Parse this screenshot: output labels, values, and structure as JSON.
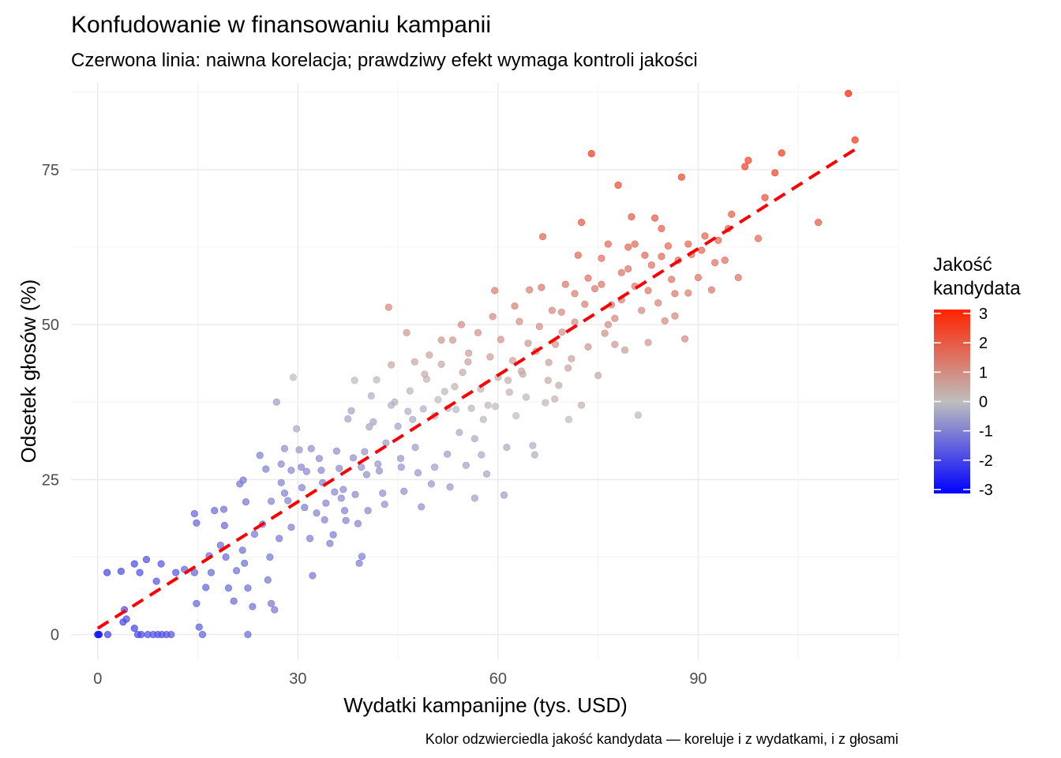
{
  "chart_data": {
    "type": "scatter",
    "title": "Konfudowanie w finansowaniu kampanii",
    "subtitle": "Czerwona linia: naiwna korelacja; prawdziwy efekt wymaga kontroli jakości",
    "xlabel": "Wydatki kampanijne (tys. USD)",
    "ylabel": "Odsetek głosów (%)",
    "caption": "Kolor odzwierciedla jakość kandydata — koreluje i z wydatkami, i z głosami",
    "xlim": [
      -4,
      120
    ],
    "ylim": [
      -4,
      89
    ],
    "x_ticks": [
      0,
      30,
      60,
      90
    ],
    "y_ticks": [
      0,
      25,
      50,
      75
    ],
    "grid": true,
    "legend": {
      "title": "Jakość\nkandydata",
      "position": "right",
      "range": [
        -3,
        3
      ],
      "ticks": [
        3,
        2,
        1,
        0,
        -1,
        -2,
        -3
      ],
      "colors": {
        "low": "#0000ff",
        "mid": "#bebebe",
        "high": "#ff2200"
      }
    },
    "trend_line": {
      "x": [
        0,
        114
      ],
      "y": [
        1,
        78.6
      ],
      "color": "#ff0000",
      "style": "dashed"
    },
    "points": [
      [
        0,
        0,
        -2.9
      ],
      [
        0.2,
        0,
        -2.8
      ],
      [
        1.5,
        0,
        -1.9
      ],
      [
        1.4,
        10,
        -1.9
      ],
      [
        3.5,
        10.2,
        -1.8
      ],
      [
        4,
        4,
        -1.8
      ],
      [
        3.8,
        2,
        -1.9
      ],
      [
        4.3,
        2.5,
        -1.8
      ],
      [
        5.5,
        1,
        -1.9
      ],
      [
        6,
        0,
        -1.8
      ],
      [
        6.5,
        0,
        -1.8
      ],
      [
        7.5,
        0,
        -1.7
      ],
      [
        8.3,
        0,
        -1.7
      ],
      [
        9,
        0,
        -1.7
      ],
      [
        9.6,
        0,
        -1.7
      ],
      [
        10.3,
        0,
        -1.7
      ],
      [
        11,
        0,
        -1.6
      ],
      [
        5.5,
        11.4,
        -1.8
      ],
      [
        6.3,
        10,
        -1.7
      ],
      [
        7.3,
        12.1,
        -1.7
      ],
      [
        8.8,
        8.6,
        -1.6
      ],
      [
        9.5,
        11.4,
        -1.6
      ],
      [
        11.7,
        10,
        -1.6
      ],
      [
        13,
        10.5,
        -1.4
      ],
      [
        14.5,
        19.5,
        -1.4
      ],
      [
        14.8,
        18,
        -1.4
      ],
      [
        14.5,
        10,
        -1.4
      ],
      [
        14.8,
        5,
        -1.4
      ],
      [
        15.2,
        1.2,
        -1.5
      ],
      [
        15.7,
        0,
        -1.4
      ],
      [
        16.2,
        7.6,
        -1.4
      ],
      [
        16.7,
        12.7,
        -1.3
      ],
      [
        17,
        10,
        -1.3
      ],
      [
        17.5,
        20,
        -1.3
      ],
      [
        18.4,
        14.4,
        -1.3
      ],
      [
        18.9,
        20.2,
        -1.2
      ],
      [
        19,
        17.6,
        -1.3
      ],
      [
        19.2,
        12.5,
        -1.3
      ],
      [
        19.6,
        7.5,
        -1.3
      ],
      [
        20.4,
        5.4,
        -1.3
      ],
      [
        20.8,
        10.3,
        -1.2
      ],
      [
        21.3,
        24.3,
        -1.1
      ],
      [
        21.7,
        13.6,
        -1.2
      ],
      [
        22,
        11.5,
        -1.2
      ],
      [
        22.5,
        0,
        -1.3
      ],
      [
        22.5,
        7.5,
        -1.2
      ],
      [
        23.2,
        4.5,
        -1.2
      ],
      [
        21.8,
        24.9,
        -1.1
      ],
      [
        22.2,
        21.4,
        -1.1
      ],
      [
        23.5,
        16.2,
        -1.1
      ],
      [
        24.3,
        28.9,
        -1
      ],
      [
        24.7,
        17.8,
        -1.1
      ],
      [
        25.2,
        26.7,
        -1
      ],
      [
        25.5,
        8.8,
        -1.1
      ],
      [
        25.8,
        12.5,
        -1.1
      ],
      [
        26,
        5,
        -1.1
      ],
      [
        26.5,
        4,
        -1.1
      ],
      [
        26.8,
        37.5,
        -0.5
      ],
      [
        27.2,
        15.5,
        -1.1
      ],
      [
        27.5,
        24.5,
        -0.9
      ],
      [
        28,
        22.8,
        -0.9
      ],
      [
        28.5,
        21.6,
        -0.9
      ],
      [
        29,
        17.3,
        -1
      ],
      [
        29.3,
        41.5,
        0
      ],
      [
        29.8,
        33.2,
        -0.3
      ],
      [
        30.2,
        29.8,
        -0.6
      ],
      [
        30.6,
        23.7,
        -0.9
      ],
      [
        31,
        20.5,
        -1
      ],
      [
        31.3,
        26.3,
        -0.8
      ],
      [
        31.8,
        15.5,
        -1
      ],
      [
        32.2,
        9.5,
        -1.1
      ],
      [
        32.8,
        19.6,
        -0.9
      ],
      [
        33.2,
        28.4,
        -0.8
      ],
      [
        33.7,
        24.5,
        -0.9
      ],
      [
        34.2,
        21.2,
        -0.9
      ],
      [
        34.8,
        14.7,
        -1
      ],
      [
        35.3,
        16.1,
        -1
      ],
      [
        35.8,
        29.6,
        -0.7
      ],
      [
        36.2,
        26.8,
        -0.8
      ],
      [
        36.8,
        23.4,
        -0.8
      ],
      [
        37.2,
        18.4,
        -0.9
      ],
      [
        37.5,
        34.8,
        -0.4
      ],
      [
        38,
        36.1,
        -0.4
      ],
      [
        38.3,
        28.5,
        -0.7
      ],
      [
        38.6,
        22.6,
        -0.8
      ],
      [
        39,
        17.9,
        -0.9
      ],
      [
        39.2,
        11.5,
        -1
      ],
      [
        39.6,
        12.6,
        -1
      ],
      [
        40,
        29.5,
        -0.6
      ],
      [
        40.3,
        25.8,
        -0.7
      ],
      [
        40.7,
        33.5,
        -0.4
      ],
      [
        41,
        38.5,
        -0.2
      ],
      [
        41.3,
        34.3,
        -0.4
      ],
      [
        41.8,
        41.1,
        0.1
      ],
      [
        42.2,
        26.4,
        -0.7
      ],
      [
        42.7,
        22.8,
        -0.7
      ],
      [
        43.2,
        30.9,
        -0.5
      ],
      [
        43.6,
        52.8,
        1
      ],
      [
        44,
        43.5,
        0.4
      ],
      [
        44.5,
        37.5,
        -0.2
      ],
      [
        45,
        33.6,
        -0.4
      ],
      [
        45.4,
        28.4,
        -0.6
      ],
      [
        45.9,
        23.1,
        -0.7
      ],
      [
        46.3,
        48.7,
        0.7
      ],
      [
        46.8,
        39.3,
        0.1
      ],
      [
        47.2,
        34.7,
        -0.3
      ],
      [
        47.6,
        30.2,
        -0.5
      ],
      [
        48,
        26.1,
        -0.6
      ],
      [
        48.5,
        20.6,
        -0.7
      ],
      [
        48.8,
        36.4,
        -0.2
      ],
      [
        49.3,
        41.2,
        0.2
      ],
      [
        49.7,
        45.1,
        0.5
      ],
      [
        50,
        24.3,
        -0.6
      ],
      [
        50.5,
        35.3,
        -0.2
      ],
      [
        51,
        37.9,
        0
      ],
      [
        51.5,
        43.6,
        0.4
      ],
      [
        52,
        39.2,
        0.1
      ],
      [
        52.4,
        29.1,
        -0.5
      ],
      [
        52.8,
        23.8,
        -0.6
      ],
      [
        53.2,
        47.5,
        0.7
      ],
      [
        53.7,
        36.3,
        -0.1
      ],
      [
        54.2,
        32.6,
        -0.3
      ],
      [
        54.7,
        42.3,
        0.4
      ],
      [
        55.2,
        27.3,
        -0.4
      ],
      [
        55.6,
        45.4,
        0.6
      ],
      [
        56,
        36.5,
        -0.1
      ],
      [
        56.5,
        31.6,
        -0.3
      ],
      [
        57,
        48.7,
        0.8
      ],
      [
        57.4,
        39.6,
        0.2
      ],
      [
        57.8,
        34.7,
        -0.1
      ],
      [
        58.3,
        25.9,
        -0.4
      ],
      [
        58.8,
        44.8,
        0.6
      ],
      [
        59.2,
        51.3,
        1
      ],
      [
        59.6,
        36.8,
        0
      ],
      [
        60,
        41.5,
        0.3
      ],
      [
        60.4,
        47.6,
        0.8
      ],
      [
        60.9,
        22.5,
        -0.5
      ],
      [
        61.3,
        30.2,
        -0.3
      ],
      [
        61.7,
        39.1,
        0.2
      ],
      [
        62.2,
        44.2,
        0.5
      ],
      [
        62.7,
        35.3,
        0
      ],
      [
        63.2,
        50.5,
        0.9
      ],
      [
        63.7,
        42,
        0.4
      ],
      [
        64.2,
        38.3,
        0.1
      ],
      [
        64.7,
        55.6,
        1.2
      ],
      [
        65.2,
        30.5,
        -0.2
      ],
      [
        65.7,
        45.7,
        0.6
      ],
      [
        66.2,
        49.7,
        0.9
      ],
      [
        66.7,
        64.2,
        1.7
      ],
      [
        67.1,
        37.4,
        0.1
      ],
      [
        67.6,
        43.9,
        0.5
      ],
      [
        68.1,
        52.3,
        1
      ],
      [
        68.6,
        46.8,
        0.7
      ],
      [
        69.1,
        40.2,
        0.3
      ],
      [
        69.6,
        48.8,
        0.8
      ],
      [
        70.1,
        56.5,
        1.3
      ],
      [
        70.6,
        34.7,
        0
      ],
      [
        71,
        44.5,
        0.5
      ],
      [
        71.5,
        50.4,
        0.9
      ],
      [
        72,
        61.2,
        1.6
      ],
      [
        72.5,
        66.5,
        1.9
      ],
      [
        73,
        53.3,
        1.1
      ],
      [
        73.5,
        46.4,
        0.7
      ],
      [
        74,
        77.6,
        2.5
      ],
      [
        74.5,
        55.8,
        1.3
      ],
      [
        75,
        41.8,
        0.4
      ],
      [
        75.5,
        60.7,
        1.5
      ],
      [
        76,
        48.6,
        0.8
      ],
      [
        76.5,
        63,
        1.6
      ],
      [
        77,
        53.2,
        1.1
      ],
      [
        77.5,
        46.8,
        0.7
      ],
      [
        78,
        72.5,
        2.2
      ],
      [
        78.5,
        58.4,
        1.4
      ],
      [
        79,
        45.9,
        0.6
      ],
      [
        79.5,
        62.5,
        1.6
      ],
      [
        80,
        67.4,
        1.9
      ],
      [
        80.5,
        56.2,
        1.3
      ],
      [
        81,
        35.4,
        0.1
      ],
      [
        81.5,
        52.3,
        1
      ],
      [
        82,
        61.2,
        1.6
      ],
      [
        82.5,
        47.1,
        0.7
      ],
      [
        83,
        59.6,
        1.5
      ],
      [
        83.5,
        67.2,
        1.9
      ],
      [
        84,
        53.5,
        1.1
      ],
      [
        84.5,
        65.5,
        1.8
      ],
      [
        85,
        50.6,
        1
      ],
      [
        85.5,
        62.7,
        1.6
      ],
      [
        86,
        57.3,
        1.4
      ],
      [
        86.5,
        51.4,
        1
      ],
      [
        87,
        60.4,
        1.5
      ],
      [
        87.5,
        73.8,
        2.3
      ],
      [
        88,
        47.7,
        0.9
      ],
      [
        88.5,
        55.1,
        1.2
      ],
      [
        89,
        61.3,
        1.6
      ],
      [
        90,
        57.6,
        1.4
      ],
      [
        91,
        64.3,
        1.7
      ],
      [
        92,
        55.6,
        1.3
      ],
      [
        93,
        63.6,
        1.7
      ],
      [
        94,
        60.4,
        1.5
      ],
      [
        95,
        67.8,
        1.9
      ],
      [
        96,
        57.6,
        1.4
      ],
      [
        97,
        75.5,
        2.4
      ],
      [
        97.5,
        76.5,
        2.4
      ],
      [
        99,
        63.9,
        1.7
      ],
      [
        100,
        70.5,
        2.1
      ],
      [
        101.5,
        74.5,
        2.3
      ],
      [
        102.5,
        77.7,
        2.5
      ],
      [
        108,
        66.5,
        1.9
      ],
      [
        112.5,
        87.3,
        3
      ],
      [
        113.5,
        79.8,
        2.6
      ],
      [
        26,
        21.5,
        -0.9
      ],
      [
        27.5,
        27.5,
        -0.8
      ],
      [
        28,
        30,
        -0.7
      ],
      [
        29,
        26.5,
        -0.8
      ],
      [
        30.5,
        27,
        -0.8
      ],
      [
        32,
        30,
        -0.7
      ],
      [
        33.5,
        26.5,
        -0.8
      ],
      [
        34,
        18.5,
        -0.9
      ],
      [
        35.5,
        23,
        -0.8
      ],
      [
        36.5,
        22,
        -0.8
      ],
      [
        37,
        20,
        -0.9
      ],
      [
        38.5,
        41,
        0.1
      ],
      [
        39.5,
        27,
        -0.7
      ],
      [
        40.5,
        20,
        -0.8
      ],
      [
        42,
        27.5,
        -0.6
      ],
      [
        43,
        21,
        -0.7
      ],
      [
        44,
        37,
        -0.2
      ],
      [
        45.5,
        27,
        -0.6
      ],
      [
        46.5,
        36,
        -0.2
      ],
      [
        47.5,
        44,
        0.4
      ],
      [
        49,
        42,
        0.3
      ],
      [
        50.5,
        27,
        -0.5
      ],
      [
        51.5,
        47.5,
        0.7
      ],
      [
        52.5,
        36.5,
        -0.1
      ],
      [
        53.5,
        40,
        0.2
      ],
      [
        54.5,
        50,
        0.9
      ],
      [
        55.5,
        44,
        0.5
      ],
      [
        56.5,
        22,
        -0.5
      ],
      [
        57.5,
        29,
        -0.3
      ],
      [
        58.5,
        37,
        0.1
      ],
      [
        59.5,
        55.5,
        1.2
      ],
      [
        61.5,
        41,
        0.3
      ],
      [
        62.5,
        53,
        1.1
      ],
      [
        63.5,
        42.5,
        0.4
      ],
      [
        64.5,
        47,
        0.7
      ],
      [
        65.5,
        29,
        -0.2
      ],
      [
        66.5,
        56,
        1.3
      ],
      [
        67.5,
        41,
        0.3
      ],
      [
        68.5,
        38,
        0.2
      ],
      [
        69.5,
        52,
        1
      ],
      [
        70.5,
        43,
        0.5
      ],
      [
        71.5,
        55,
        1.2
      ],
      [
        72.5,
        37,
        0.2
      ],
      [
        73.5,
        57.5,
        1.4
      ],
      [
        75.5,
        56.5,
        1.3
      ],
      [
        76.5,
        50,
        0.9
      ],
      [
        77.5,
        51,
        1
      ],
      [
        78.5,
        54,
        1.1
      ],
      [
        79.5,
        59,
        1.4
      ],
      [
        80.5,
        63,
        1.6
      ],
      [
        82.5,
        55.5,
        1.3
      ],
      [
        84.5,
        61,
        1.6
      ],
      [
        86.5,
        55,
        1.3
      ],
      [
        88.5,
        63,
        1.7
      ],
      [
        90.5,
        62,
        1.6
      ],
      [
        92.5,
        60,
        1.5
      ],
      [
        94.5,
        65.5,
        1.8
      ]
    ]
  }
}
